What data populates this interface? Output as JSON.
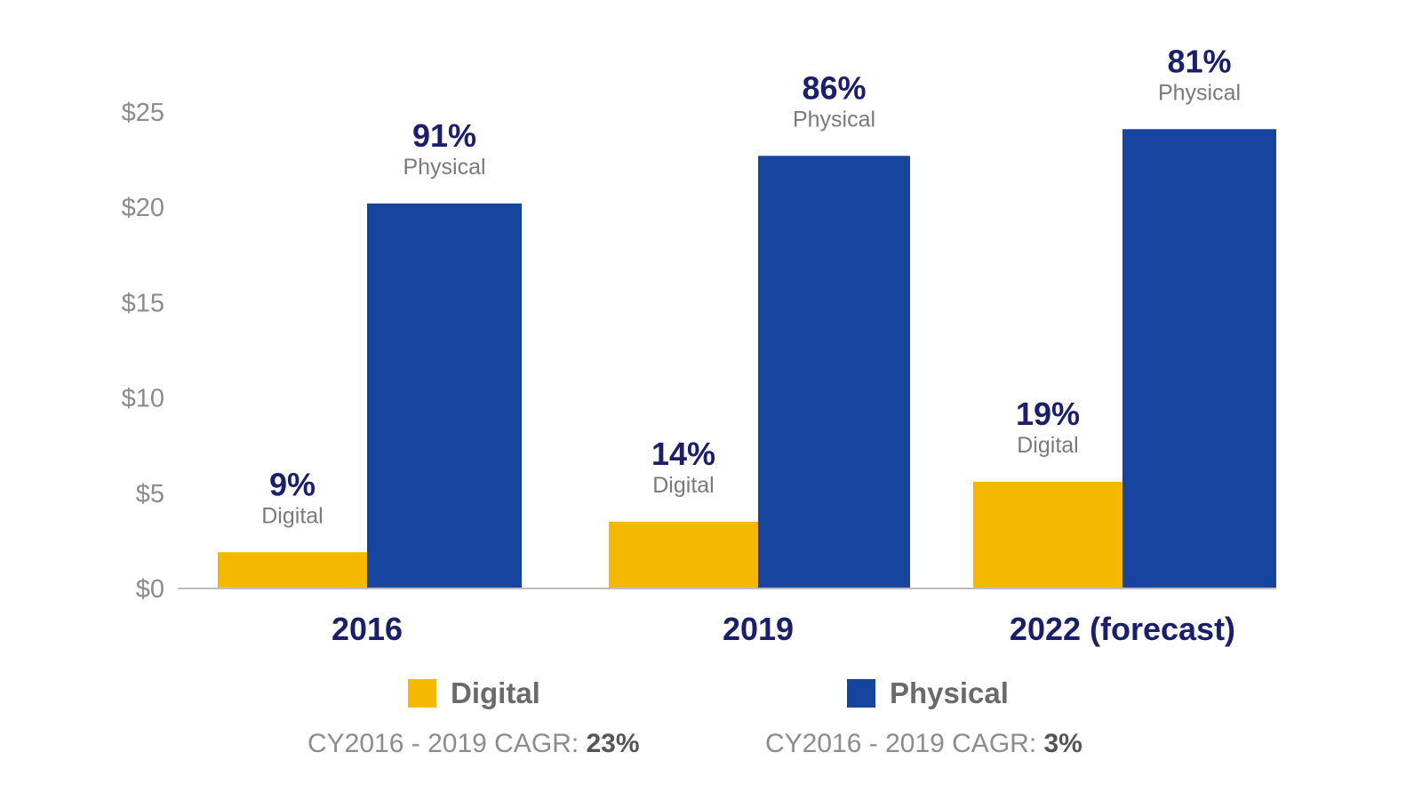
{
  "chart_data": {
    "type": "bar",
    "categories": [
      "2016",
      "2019",
      "2022 (forecast)"
    ],
    "series": [
      {
        "name": "Digital",
        "color": "#f5b800",
        "values": [
          1.9,
          3.5,
          5.6
        ],
        "share_labels": [
          "9%",
          "14%",
          "19%"
        ],
        "kind_label": "Digital"
      },
      {
        "name": "Physical",
        "color": "#17449e",
        "values": [
          20.2,
          22.7,
          24.1
        ],
        "share_labels": [
          "91%",
          "86%",
          "81%"
        ],
        "kind_label": "Physical"
      }
    ],
    "y_ticks": [
      "$0",
      "$5",
      "$10",
      "$15",
      "$20",
      "$25"
    ],
    "ylim": [
      0,
      25
    ],
    "grid": false,
    "legend_position": "bottom"
  },
  "legend": [
    {
      "label": "Digital",
      "color": "#f5b800",
      "cagr_text": "CY2016 - 2019 CAGR: ",
      "cagr_value": "23%"
    },
    {
      "label": "Physical",
      "color": "#17449e",
      "cagr_text": "CY2016 - 2019 CAGR: ",
      "cagr_value": "3%"
    }
  ]
}
